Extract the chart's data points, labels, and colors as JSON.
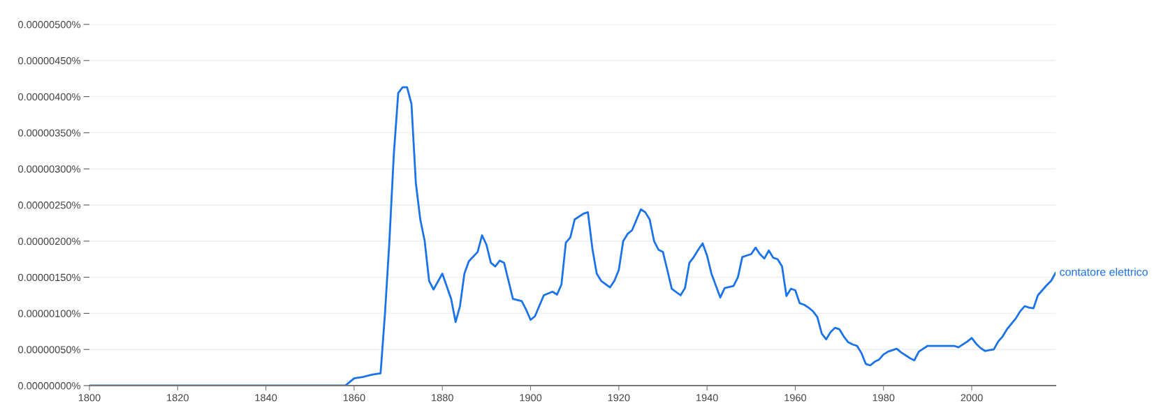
{
  "chart_data": {
    "type": "line",
    "x": [
      1800,
      1858,
      1860,
      1862,
      1864,
      1866,
      1867,
      1868,
      1869,
      1870,
      1871,
      1872,
      1873,
      1874,
      1875,
      1876,
      1877,
      1878,
      1880,
      1882,
      1883,
      1884,
      1885,
      1886,
      1888,
      1889,
      1890,
      1891,
      1892,
      1893,
      1894,
      1895,
      1896,
      1898,
      1899,
      1900,
      1901,
      1903,
      1905,
      1906,
      1907,
      1908,
      1909,
      1910,
      1912,
      1913,
      1914,
      1915,
      1916,
      1918,
      1919,
      1920,
      1921,
      1922,
      1923,
      1925,
      1926,
      1927,
      1928,
      1929,
      1930,
      1931,
      1932,
      1934,
      1935,
      1936,
      1937,
      1938,
      1939,
      1940,
      1941,
      1943,
      1944,
      1946,
      1947,
      1948,
      1949,
      1950,
      1951,
      1952,
      1953,
      1954,
      1955,
      1956,
      1957,
      1958,
      1959,
      1960,
      1961,
      1962,
      1963,
      1964,
      1965,
      1966,
      1967,
      1968,
      1969,
      1970,
      1971,
      1972,
      1973,
      1974,
      1975,
      1976,
      1977,
      1978,
      1979,
      1980,
      1981,
      1983,
      1984,
      1985,
      1986,
      1987,
      1988,
      1989,
      1990,
      1992,
      1994,
      1996,
      1997,
      1998,
      1999,
      2000,
      2001,
      2002,
      2003,
      2004,
      2005,
      2006,
      2007,
      2008,
      2010,
      2011,
      2012,
      2013,
      2014,
      2015,
      2016,
      2017,
      2018,
      2019
    ],
    "series": [
      {
        "name": "contatore elettrico",
        "color": "#1a73e8",
        "values": [
          0,
          0,
          1e-07,
          1.2e-07,
          1.5e-07,
          1.7e-07,
          1e-06,
          2e-06,
          3.2e-06,
          4.05e-06,
          4.13e-06,
          4.13e-06,
          3.9e-06,
          2.8e-06,
          2.3e-06,
          2e-06,
          1.45e-06,
          1.33e-06,
          1.55e-06,
          1.2e-06,
          8.8e-07,
          1.1e-06,
          1.55e-06,
          1.72e-06,
          1.85e-06,
          2.08e-06,
          1.95e-06,
          1.7e-06,
          1.65e-06,
          1.73e-06,
          1.7e-06,
          1.45e-06,
          1.2e-06,
          1.17e-06,
          1.05e-06,
          9.1e-07,
          9.6e-07,
          1.25e-06,
          1.3e-06,
          1.26e-06,
          1.4e-06,
          1.98e-06,
          2.05e-06,
          2.3e-06,
          2.38e-06,
          2.4e-06,
          1.9e-06,
          1.55e-06,
          1.45e-06,
          1.36e-06,
          1.45e-06,
          1.6e-06,
          2e-06,
          2.1e-06,
          2.15e-06,
          2.44e-06,
          2.4e-06,
          2.3e-06,
          2e-06,
          1.88e-06,
          1.85e-06,
          1.6e-06,
          1.34e-06,
          1.25e-06,
          1.35e-06,
          1.7e-06,
          1.78e-06,
          1.88e-06,
          1.97e-06,
          1.8e-06,
          1.55e-06,
          1.22e-06,
          1.35e-06,
          1.38e-06,
          1.5e-06,
          1.78e-06,
          1.8e-06,
          1.82e-06,
          1.91e-06,
          1.82e-06,
          1.76e-06,
          1.87e-06,
          1.77e-06,
          1.75e-06,
          1.65e-06,
          1.24e-06,
          1.34e-06,
          1.32e-06,
          1.14e-06,
          1.12e-06,
          1.08e-06,
          1.03e-06,
          9.5e-07,
          7.2e-07,
          6.4e-07,
          7.4e-07,
          8e-07,
          7.8e-07,
          6.8e-07,
          6e-07,
          5.7e-07,
          5.5e-07,
          4.5e-07,
          3e-07,
          2.8e-07,
          3.3e-07,
          3.6e-07,
          4.3e-07,
          4.7e-07,
          5.1e-07,
          4.6e-07,
          4.2e-07,
          3.8e-07,
          3.5e-07,
          4.7e-07,
          5.1e-07,
          5.5e-07,
          5.5e-07,
          5.5e-07,
          5.5e-07,
          5.3e-07,
          5.7e-07,
          6.1e-07,
          6.6e-07,
          5.8e-07,
          5.2e-07,
          4.8e-07,
          4.9e-07,
          5e-07,
          6.1e-07,
          6.8e-07,
          7.8e-07,
          9.3e-07,
          1.03e-06,
          1.1e-06,
          1.08e-06,
          1.07e-06,
          1.25e-06,
          1.32e-06,
          1.39e-06,
          1.45e-06,
          1.56e-06
        ]
      }
    ],
    "xlim": [
      1800,
      2019
    ],
    "xticks": [
      1800,
      1820,
      1840,
      1860,
      1880,
      1900,
      1920,
      1940,
      1960,
      1980,
      2000
    ],
    "ylim": [
      0,
      5e-06
    ],
    "yticks": [
      {
        "value": 0,
        "label": "0.00000000%"
      },
      {
        "value": 5e-07,
        "label": "0.00000050%"
      },
      {
        "value": 1e-06,
        "label": "0.00000100%"
      },
      {
        "value": 1.5e-06,
        "label": "0.00000150%"
      },
      {
        "value": 2e-06,
        "label": "0.00000200%"
      },
      {
        "value": 2.5e-06,
        "label": "0.00000250%"
      },
      {
        "value": 3e-06,
        "label": "0.00000300%"
      },
      {
        "value": 3.5e-06,
        "label": "0.00000350%"
      },
      {
        "value": 4e-06,
        "label": "0.00000400%"
      },
      {
        "value": 4.5e-06,
        "label": "0.00000450%"
      },
      {
        "value": 5e-06,
        "label": "0.00000500%"
      }
    ],
    "grid": "y",
    "legend": false,
    "marker": "none",
    "line_style": "solid"
  }
}
